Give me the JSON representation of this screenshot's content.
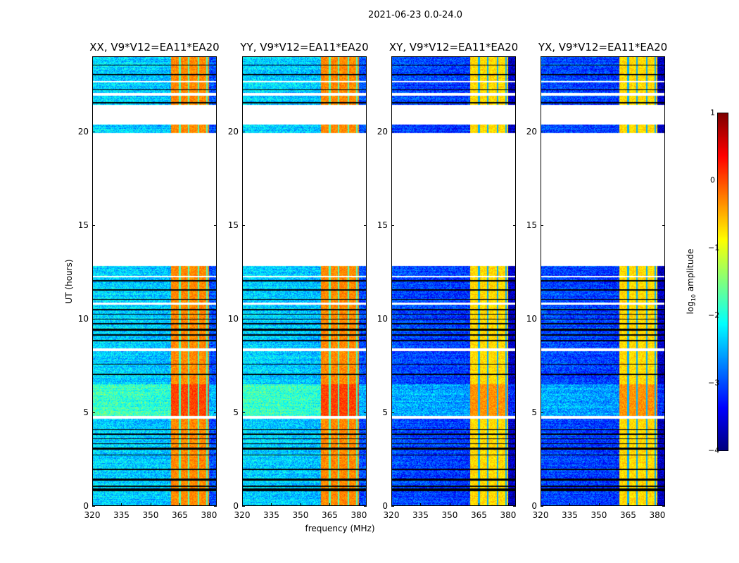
{
  "chart_data": {
    "type": "heatmap",
    "title": "2021-06-23 0.0-24.0",
    "xlabel": "frequency (MHz)",
    "ylabel": "UT (hours)",
    "xlim": [
      320,
      384
    ],
    "ylim": [
      0,
      24
    ],
    "xticks": [
      "320",
      "335",
      "350",
      "365",
      "380"
    ],
    "xtick_values": [
      320,
      335,
      350,
      365,
      380
    ],
    "yticks": [
      "0",
      "5",
      "10",
      "15",
      "20"
    ],
    "ytick_values": [
      0,
      5,
      10,
      15,
      20
    ],
    "colorbar": {
      "label": "log",
      "label_sub": "10",
      "label_rest": " amplitude",
      "range": [
        -4,
        1
      ],
      "ticks": [
        "1",
        "0",
        "−1",
        "−2",
        "−3",
        "−4"
      ],
      "tick_values": [
        1,
        0,
        -1,
        -2,
        -3,
        -4
      ],
      "colormap": "jet"
    },
    "panels": [
      {
        "title": "XX, V9*V12=EA11*EA20",
        "background_log_amp": -2.3,
        "band_log_amp": -0.3
      },
      {
        "title": "YY, V9*V12=EA11*EA20",
        "background_log_amp": -2.3,
        "band_log_amp": -0.3
      },
      {
        "title": "XY, V9*V12=EA11*EA20",
        "background_log_amp": -3.0,
        "band_log_amp": -0.7
      },
      {
        "title": "YX, V9*V12=EA11*EA20",
        "background_log_amp": -3.0,
        "band_log_amp": -0.7
      }
    ],
    "strong_band_mhz": [
      360.5,
      380
    ],
    "band_channel_gaps_mhz": [
      365,
      369.5,
      374.5,
      379
    ],
    "bright_interval_hours": [
      4.8,
      6.5
    ],
    "flagged_hours": [
      [
        4.65,
        4.8
      ],
      [
        8.25,
        8.4
      ],
      [
        10.75,
        10.85
      ],
      [
        12.2,
        12.3
      ],
      [
        12.8,
        19.9
      ],
      [
        20.35,
        21.4
      ],
      [
        21.9,
        22.05
      ],
      [
        22.6,
        22.7
      ]
    ],
    "dropout_hours": [
      [
        0.8,
        0.95
      ],
      [
        1.0,
        1.1
      ],
      [
        1.35,
        1.45
      ],
      [
        1.9,
        2.0
      ],
      [
        2.7,
        2.75
      ],
      [
        3.0,
        3.1
      ],
      [
        3.3,
        3.35
      ],
      [
        3.55,
        3.6
      ],
      [
        3.8,
        3.85
      ],
      [
        4.05,
        4.1
      ],
      [
        7.0,
        7.05
      ],
      [
        7.55,
        7.6
      ],
      [
        8.8,
        8.85
      ],
      [
        9.1,
        9.15
      ],
      [
        9.35,
        9.45
      ],
      [
        9.7,
        9.75
      ],
      [
        9.95,
        10.0
      ],
      [
        10.2,
        10.25
      ],
      [
        10.45,
        10.5
      ],
      [
        11.0,
        11.05
      ],
      [
        11.5,
        11.55
      ],
      [
        12.0,
        12.05
      ],
      [
        21.5,
        21.55
      ],
      [
        22.2,
        22.25
      ],
      [
        23.0,
        23.05
      ],
      [
        23.5,
        23.55
      ]
    ]
  }
}
